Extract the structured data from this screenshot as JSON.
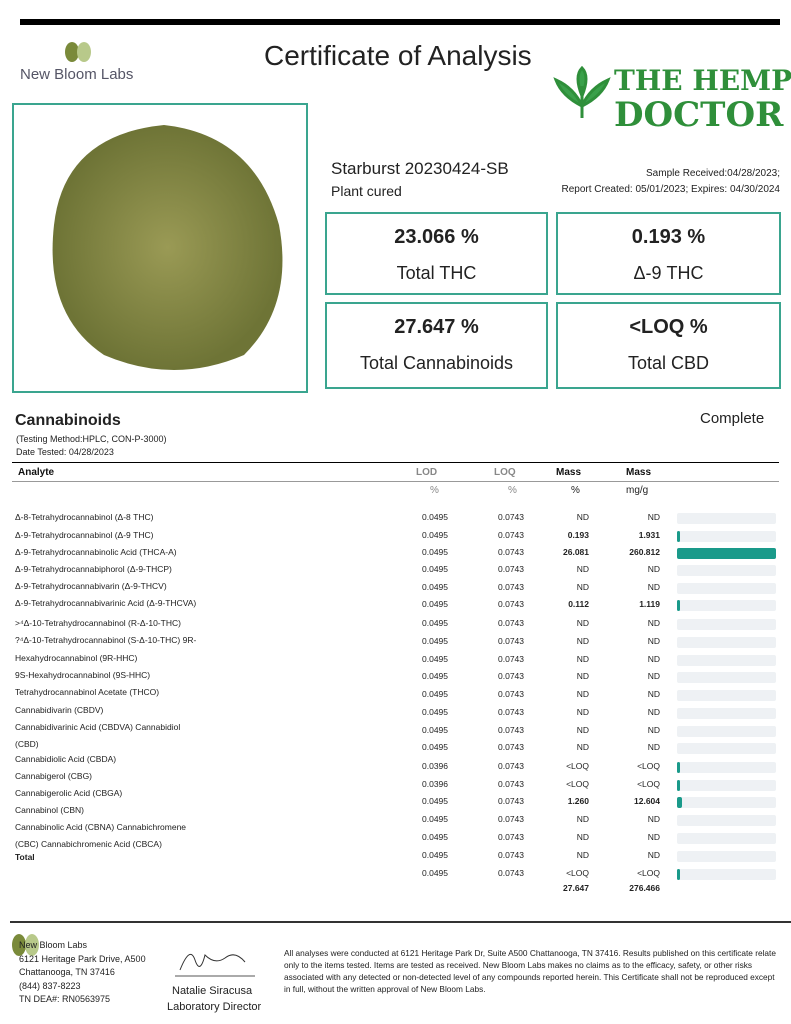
{
  "header": {
    "lab_name": "New Bloom Labs",
    "title": "Certificate of Analysis",
    "brand_top": "THE HEMP",
    "brand_bottom": "DOCTOR"
  },
  "sample": {
    "name": "Starburst 20230424-SB",
    "type": "Plant cured",
    "received": "Sample Received:04/28/2023;",
    "report": "Report Created: 05/01/2023; Expires: 04/30/2024"
  },
  "summary": [
    {
      "value": "23.066 %",
      "label": "Total THC"
    },
    {
      "value": "0.193 %",
      "label": "Δ-9 THC"
    },
    {
      "value": "27.647 %",
      "label": "Total Cannabinoids"
    },
    {
      "value": "<LOQ %",
      "label": "Total CBD"
    }
  ],
  "section": {
    "title": "Cannabinoids",
    "status": "Complete",
    "method": "(Testing Method:HPLC, CON-P-3000)",
    "date": "Date Tested: 04/28/2023"
  },
  "table": {
    "headers": [
      "Analyte",
      "LOD",
      "LOQ",
      "Mass",
      "Mass"
    ],
    "units": [
      "%",
      "%",
      "%",
      "mg/g"
    ],
    "analytes": [
      "Δ-8-Tetrahydrocannabinol (Δ-8 THC)",
      "Δ-9-Tetrahydrocannabinol (Δ-9 THC)",
      "Δ-9-Tetrahydrocannabinolic Acid (THCA-A)",
      "Δ-9-Tetrahydrocannabiphorol (Δ-9-THCP)",
      "Δ-9-Tetrahydrocannabivarin (Δ-9-THCV)",
      "Δ-9-Tetrahydrocannabivarinic Acid (Δ-9-THCVA)",
      ">⁴Δ-10-Tetrahydrocannabinol (R-Δ-10-THC)",
      "?⁴Δ-10-Tetrahydrocannabinol (S-Δ-10-THC) 9R-",
      "Hexahydrocannabinol (9R-HHC)",
      "9S-Hexahydrocannabinol (9S-HHC)",
      "Tetrahydrocannabinol Acetate (THCO)",
      "Cannabidivarin (CBDV)",
      "Cannabidivarinic Acid (CBDVA) Cannabidiol",
      "(CBD)",
      "Cannabidiolic Acid (CBDA)",
      "Cannabigerol (CBG)",
      "Cannabigerolic Acid (CBGA)",
      "Cannabinol (CBN)",
      "Cannabinolic Acid (CBNA) Cannabichromene",
      "(CBC) Cannabichromenic Acid (CBCA)",
      "Total"
    ],
    "rows": [
      [
        "0.0495",
        "0.0743",
        "ND",
        "ND"
      ],
      [
        "0.0495",
        "0.0743",
        "0.193",
        "1.931"
      ],
      [
        "0.0495",
        "0.0743",
        "26.081",
        "260.812"
      ],
      [
        "0.0495",
        "0.0743",
        "ND",
        "ND"
      ],
      [
        "0.0495",
        "0.0743",
        "ND",
        "ND"
      ],
      [
        "0.0495",
        "0.0743",
        "0.112",
        "1.119"
      ],
      [
        "0.0495",
        "0.0743",
        "ND",
        "ND"
      ],
      [
        "0.0495",
        "0.0743",
        "ND",
        "ND"
      ],
      [
        "0.0495",
        "0.0743",
        "ND",
        "ND"
      ],
      [
        "0.0495",
        "0.0743",
        "ND",
        "ND"
      ],
      [
        "0.0495",
        "0.0743",
        "ND",
        "ND"
      ],
      [
        "0.0495",
        "0.0743",
        "ND",
        "ND"
      ],
      [
        "0.0495",
        "0.0743",
        "ND",
        "ND"
      ],
      [
        "0.0495",
        "0.0743",
        "ND",
        "ND"
      ],
      [
        "0.0396",
        "0.0743",
        "<LOQ",
        "<LOQ"
      ],
      [
        "0.0396",
        "0.0743",
        "<LOQ",
        "<LOQ"
      ],
      [
        "0.0495",
        "0.0743",
        "1.260",
        "12.604"
      ],
      [
        "0.0495",
        "0.0743",
        "ND",
        "ND"
      ],
      [
        "0.0495",
        "0.0743",
        "ND",
        "ND"
      ],
      [
        "0.0495",
        "0.0743",
        "ND",
        "ND"
      ],
      [
        "0.0495",
        "0.0743",
        "<LOQ",
        "<LOQ"
      ]
    ],
    "total": [
      "27.647",
      "276.466"
    ]
  },
  "footer": {
    "address": [
      "New Bloom Labs",
      "6121 Heritage Park Drive, A500",
      "Chattanooga, TN 37416",
      "(844) 837-8223",
      "TN DEA#: RN0563975"
    ],
    "signer": "Natalie Siracusa",
    "role": "Laboratory Director",
    "disclaimer": "All analyses were conducted at 6121 Heritage Park Dr, Suite A500 Chattanooga, TN 37416. Results published on this certificate relate only to the items tested. Items are tested as received. New Bloom Labs makes no claims as to the efficacy, safety, or other risks associated with any detected or non-detected level of any compounds reported herein. This Certificate shall not be reproduced except in full, without the written approval of New Bloom Labs."
  }
}
